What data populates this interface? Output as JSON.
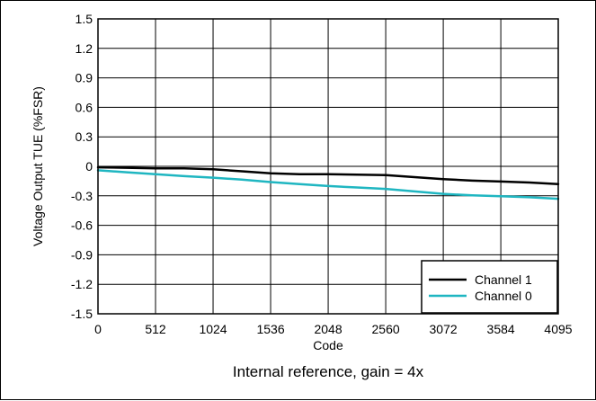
{
  "chart_data": {
    "type": "line",
    "title": "",
    "caption": "Internal reference, gain = 4x",
    "xlabel": "Code",
    "ylabel": "Voltage Output TUE (%FSR)",
    "xlim": [
      0,
      4095
    ],
    "ylim": [
      -1.5,
      1.5
    ],
    "x_ticks": [
      0,
      512,
      1024,
      1536,
      2048,
      2560,
      3072,
      3584,
      4095
    ],
    "x_tick_labels": [
      "0",
      "512",
      "1024",
      "1536",
      "2048",
      "2560",
      "3072",
      "3584",
      "4095"
    ],
    "y_ticks": [
      1.5,
      1.2,
      0.9,
      0.6,
      0.3,
      0,
      -0.3,
      -0.6,
      -0.9,
      -1.2,
      -1.5
    ],
    "y_tick_labels": [
      "1.5",
      "1.2",
      "0.9",
      "0.6",
      "0.3",
      "0",
      "-0.3",
      "-0.6",
      "-0.9",
      "-1.2",
      "-1.5"
    ],
    "grid": true,
    "legend_position": "bottom-right",
    "series": [
      {
        "name": "Channel 1",
        "color": "#000000",
        "x": [
          0,
          256,
          512,
          768,
          1024,
          1280,
          1536,
          1792,
          2048,
          2304,
          2560,
          2816,
          3072,
          3328,
          3584,
          3840,
          4095
        ],
        "y": [
          -0.01,
          -0.015,
          -0.02,
          -0.02,
          -0.03,
          -0.05,
          -0.07,
          -0.08,
          -0.08,
          -0.085,
          -0.09,
          -0.11,
          -0.13,
          -0.145,
          -0.155,
          -0.165,
          -0.18
        ]
      },
      {
        "name": "Channel 0",
        "color": "#1fb6c1",
        "x": [
          0,
          256,
          512,
          768,
          1024,
          1280,
          1536,
          1792,
          2048,
          2304,
          2560,
          2816,
          3072,
          3328,
          3584,
          3840,
          4095
        ],
        "y": [
          -0.04,
          -0.06,
          -0.08,
          -0.1,
          -0.115,
          -0.135,
          -0.16,
          -0.18,
          -0.2,
          -0.215,
          -0.23,
          -0.255,
          -0.28,
          -0.295,
          -0.305,
          -0.315,
          -0.33
        ]
      }
    ]
  }
}
